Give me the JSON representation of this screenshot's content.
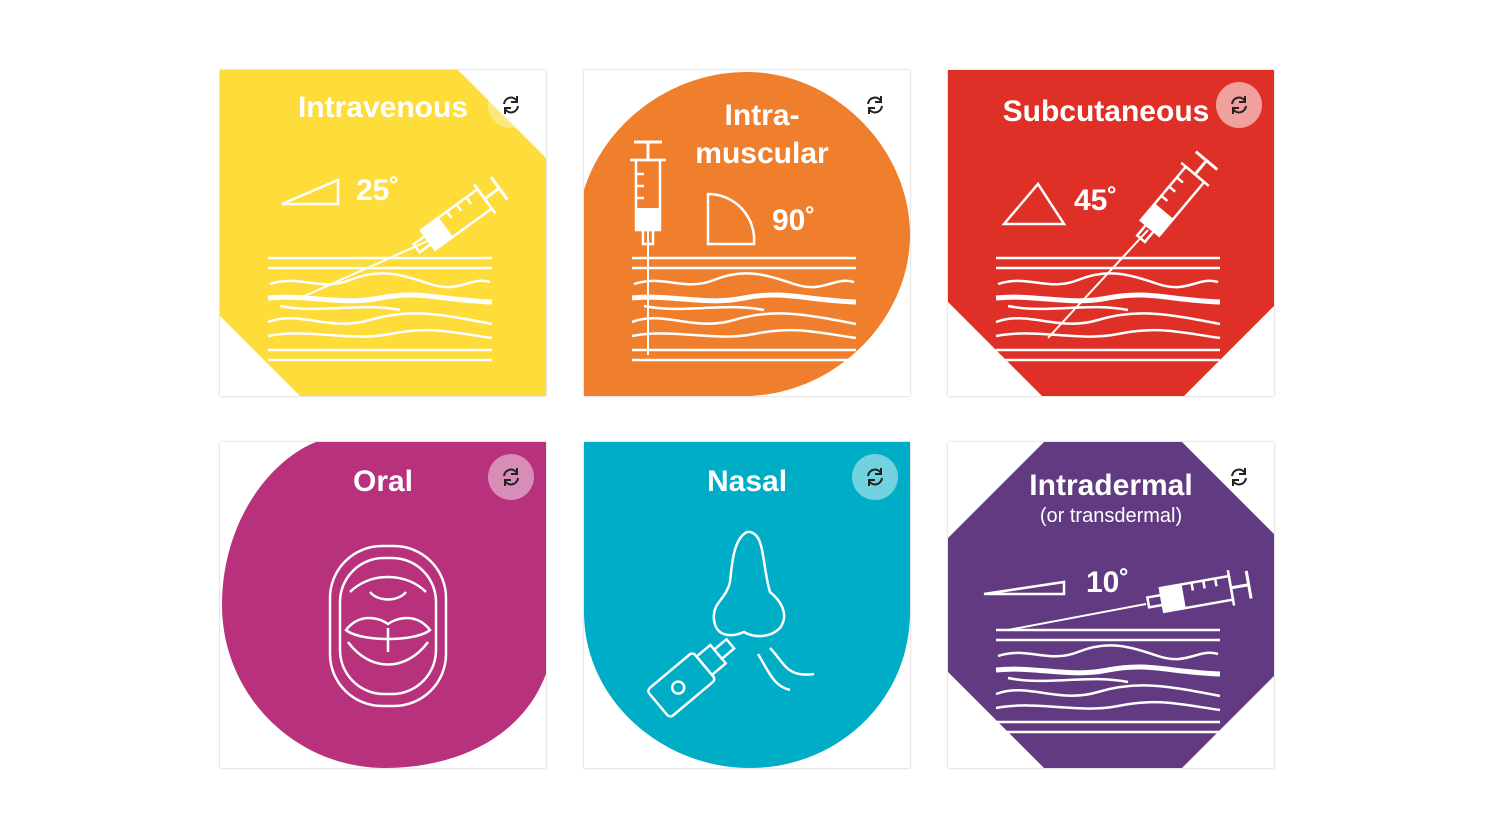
{
  "colors": {
    "intravenous": "#fedc3a",
    "intramuscular": "#f07f2d",
    "subcutaneous": "#de3027",
    "oral": "#b7317c",
    "nasal": "#00adc6",
    "intradermal": "#623a82"
  },
  "cards": {
    "intravenous": {
      "title": "Intravenous",
      "angle": "25˚"
    },
    "intramuscular": {
      "title_line1": "Intra-",
      "title_line2": "muscular",
      "angle": "90˚"
    },
    "subcutaneous": {
      "title": "Subcutaneous",
      "angle": "45˚"
    },
    "oral": {
      "title": "Oral"
    },
    "nasal": {
      "title": "Nasal"
    },
    "intradermal": {
      "title": "Intradermal",
      "subtitle": "(or transdermal)",
      "angle": "10˚"
    }
  },
  "icons": {
    "flip": "rotate-arrows-icon",
    "needle": "syringe-icon",
    "skin": "skin-layers-icon",
    "mouth": "open-mouth-icon",
    "nose": "nose-icon",
    "spray": "nasal-spray-icon"
  }
}
